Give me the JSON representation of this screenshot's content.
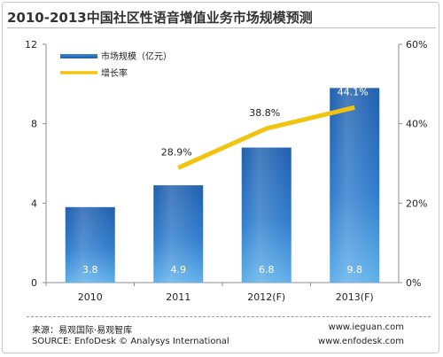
{
  "chart_data": {
    "type": "bar",
    "title": "2010-2013中国社区性语音增值业务市场规模预测",
    "categories": [
      "2010",
      "2011",
      "2012(F)",
      "2013(F)"
    ],
    "series": [
      {
        "name": "市场规模（亿元）",
        "type": "bar",
        "axis": "left",
        "values": [
          3.8,
          4.9,
          6.8,
          9.8
        ],
        "labels": [
          "3.8",
          "4.9",
          "6.8",
          "9.8"
        ],
        "color": "#1f5fa8"
      },
      {
        "name": "增长率",
        "type": "line",
        "axis": "right",
        "values": [
          null,
          28.9,
          38.8,
          44.1
        ],
        "labels": [
          "",
          "28.9%",
          "38.8%",
          "44.1%"
        ],
        "color": "#f2c40f"
      }
    ],
    "y_left": {
      "min": 0,
      "max": 12,
      "ticks": [
        "0",
        "4",
        "8",
        "12"
      ],
      "tick_values": [
        0,
        4,
        8,
        12
      ]
    },
    "y_right": {
      "min": 0,
      "max": 60,
      "ticks": [
        "0%",
        "20%",
        "40%",
        "60%"
      ],
      "tick_values": [
        0,
        20,
        40,
        60
      ]
    },
    "legend_position": "top-left",
    "grid": false
  },
  "footer": {
    "source_cn": "来源：易观国际·易观智库",
    "source_en": "SOURCE: EnfoDesk © Analysys International",
    "site1": "www.ieguan.com",
    "site2": "www.enfodesk.com"
  }
}
